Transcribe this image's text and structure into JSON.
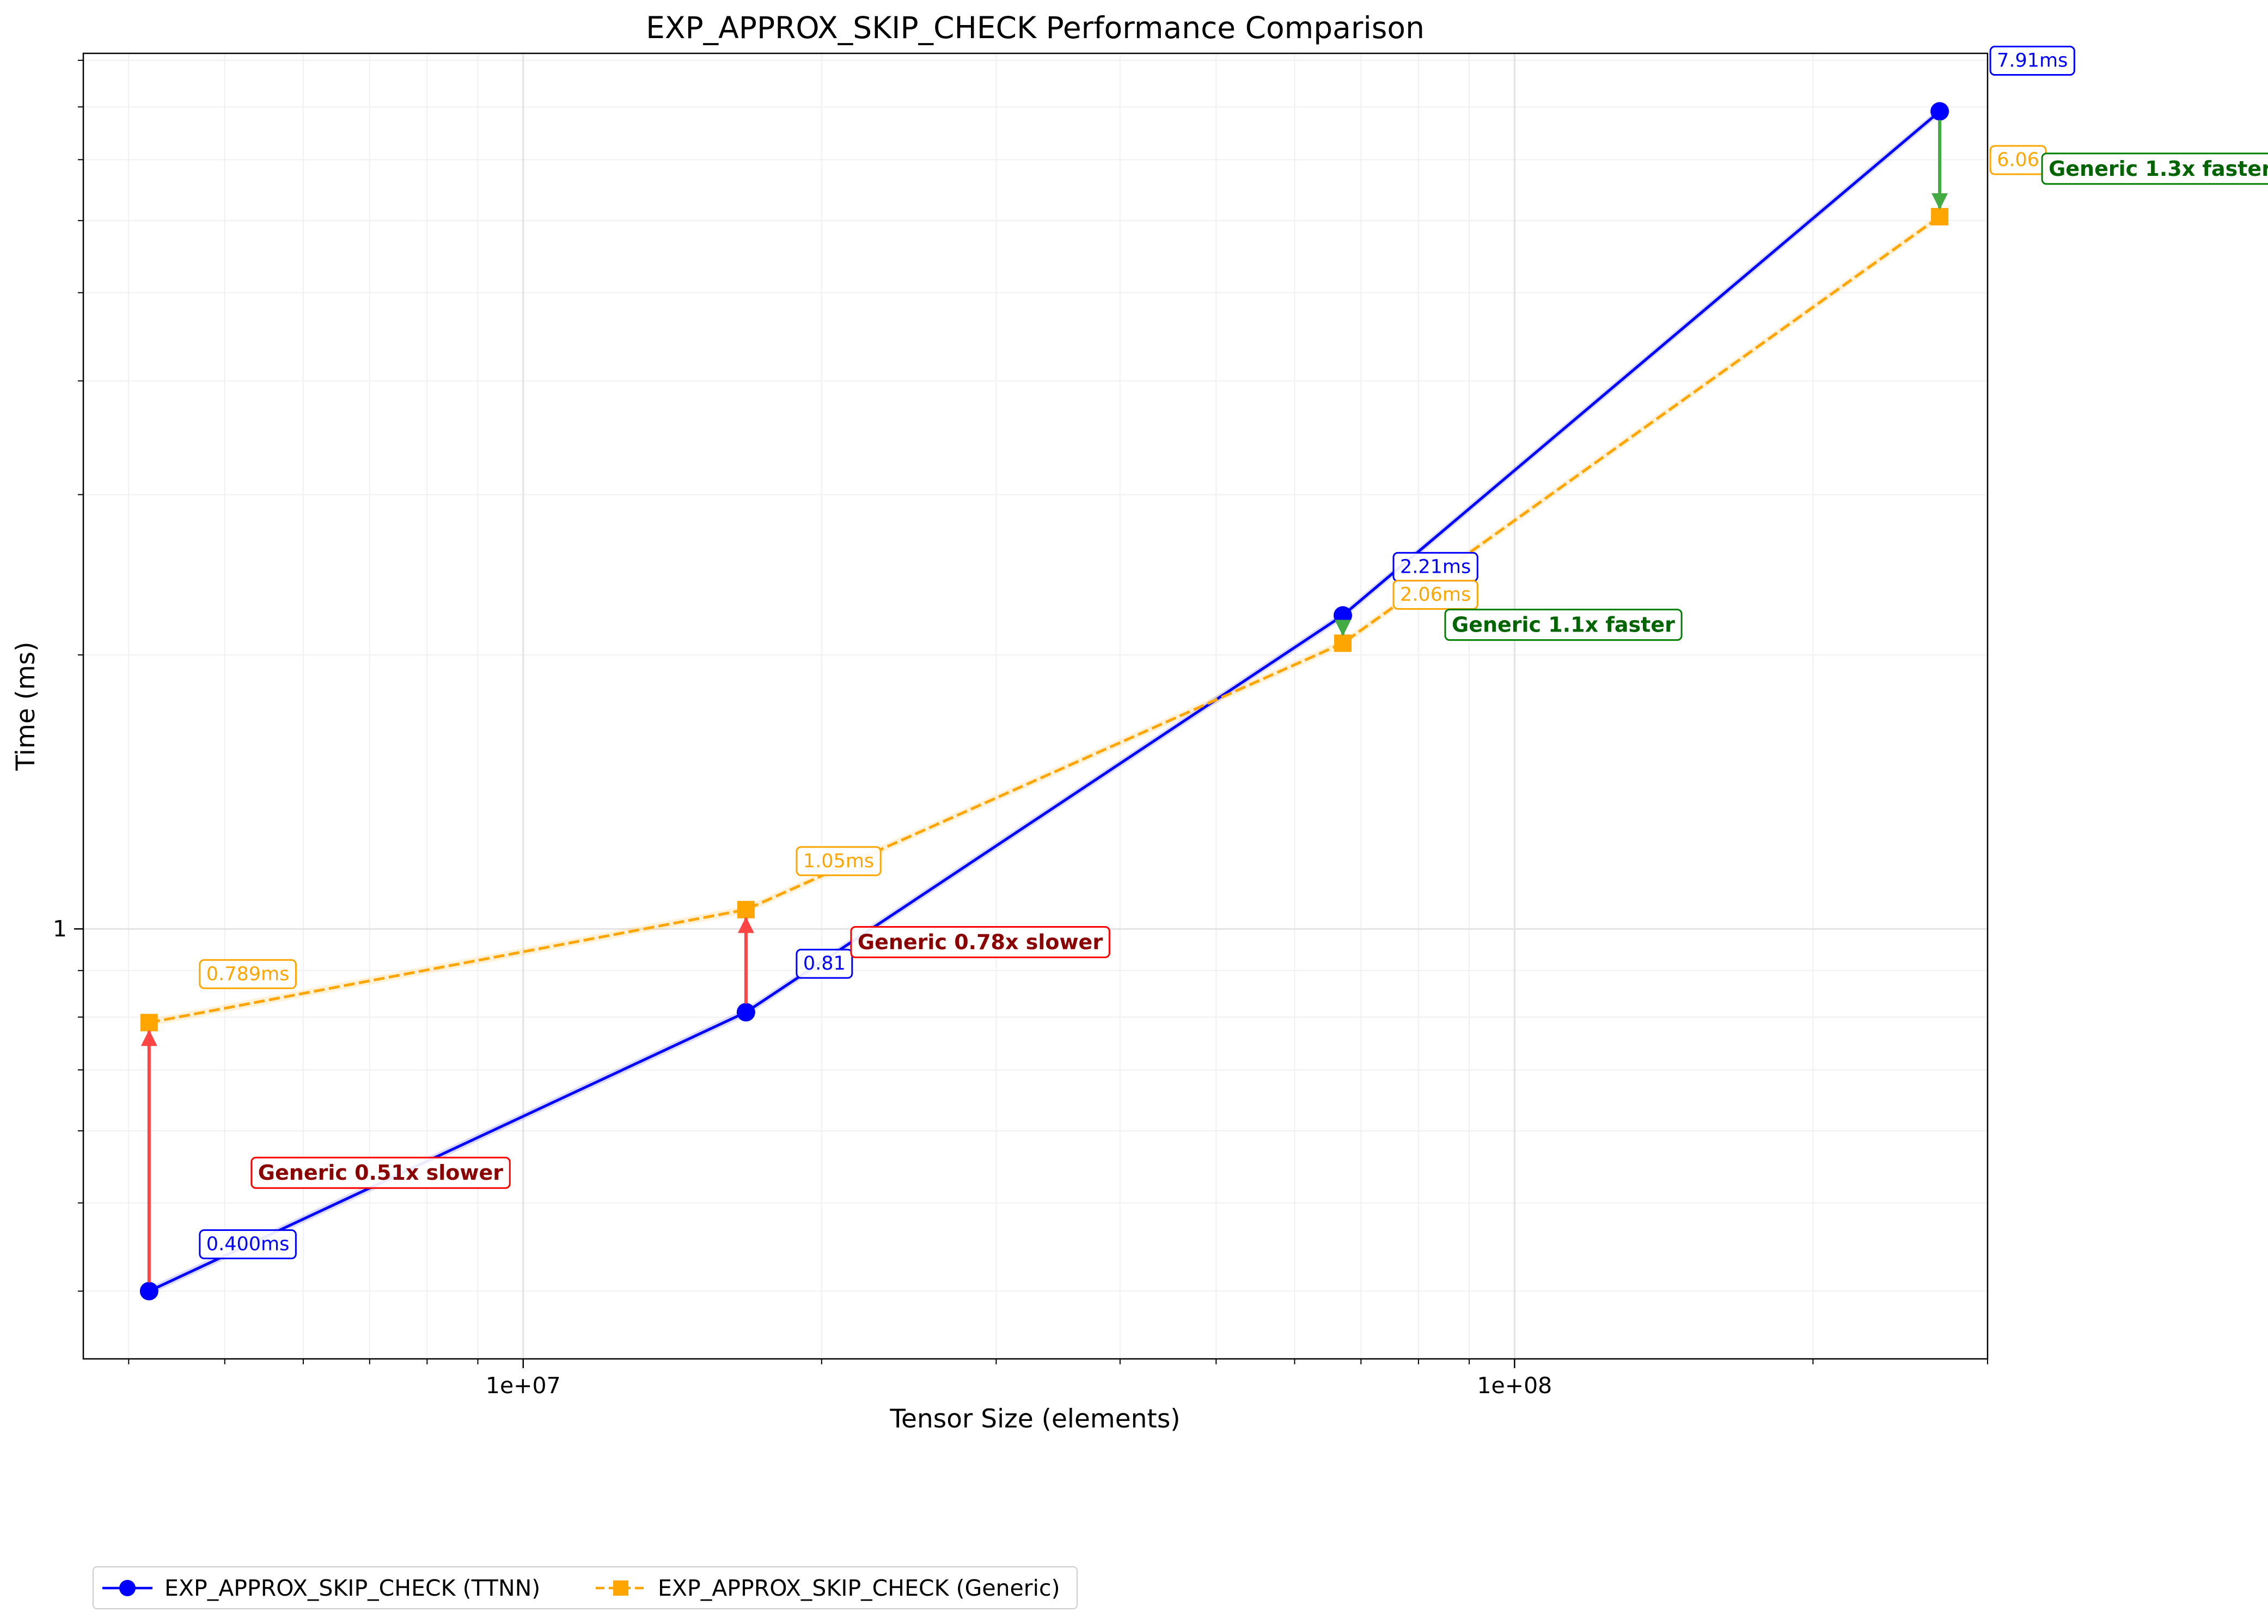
{
  "chart_data": {
    "type": "line",
    "title": "EXP_APPROX_SKIP_CHECK Performance Comparison",
    "xlabel": "Tensor Size (elements)",
    "ylabel": "Time (ms)",
    "x_scale": "log",
    "y_scale": "log",
    "xlim": [
      3600000,
      300000000
    ],
    "ylim": [
      0.337,
      9.16
    ],
    "x_ticks": [
      {
        "value": 10000000,
        "label": "1e+07"
      },
      {
        "value": 100000000,
        "label": "1e+08"
      }
    ],
    "y_ticks": [
      {
        "value": 1,
        "label": "1"
      }
    ],
    "grid": true,
    "legend_position": "below-left",
    "x": [
      4194304,
      16777216,
      67108864,
      268435456
    ],
    "series": [
      {
        "name": "EXP_APPROX_SKIP_CHECK (TTNN)",
        "color": "#0000ff",
        "line_style": "solid",
        "marker": "circle",
        "values": [
          0.4,
          0.81,
          2.21,
          7.91
        ],
        "value_labels": [
          "0.400ms",
          "0.81",
          "2.21ms",
          "7.91ms"
        ]
      },
      {
        "name": "EXP_APPROX_SKIP_CHECK (Generic)",
        "color": "#ffa500",
        "line_style": "dashed",
        "marker": "square",
        "values": [
          0.789,
          1.05,
          2.06,
          6.06
        ],
        "value_labels": [
          "0.789ms",
          "1.05ms",
          "2.06ms",
          "6.06"
        ]
      }
    ],
    "comparisons": [
      {
        "text": "Generic 0.51x slower",
        "status": "slower",
        "color": "#8b0000",
        "border": "#ff0000",
        "arrow": "#ff4444"
      },
      {
        "text": "Generic 0.78x slower",
        "status": "slower",
        "color": "#8b0000",
        "border": "#ff0000",
        "arrow": "#ff4444"
      },
      {
        "text": "Generic 1.1x faster",
        "status": "faster",
        "color": "#006400",
        "border": "#008000",
        "arrow": "#44aa44"
      },
      {
        "text": "Generic 1.3x faster",
        "status": "faster",
        "color": "#006400",
        "border": "#008000",
        "arrow": "#44aa44"
      }
    ]
  }
}
